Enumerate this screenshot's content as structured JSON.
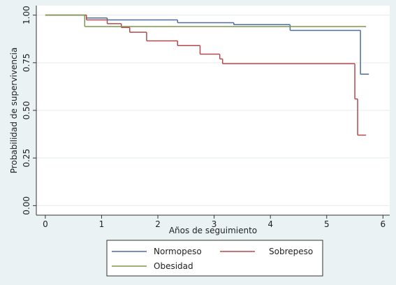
{
  "chart_data": {
    "type": "step",
    "xlabel": "Años de seguimiento",
    "ylabel": "Probabilidad de supervivencia",
    "xlim": [
      -0.16,
      6.12
    ],
    "ylim": [
      -0.05,
      1.05
    ],
    "xticks": [
      0,
      1,
      2,
      3,
      4,
      5,
      6
    ],
    "yticks": [
      {
        "value": 0,
        "label": "0.00"
      },
      {
        "value": 0.25,
        "label": "0.25"
      },
      {
        "value": 0.5,
        "label": "0.50"
      },
      {
        "value": 0.75,
        "label": "0.75"
      },
      {
        "value": 1,
        "label": "1.00"
      }
    ],
    "grid": true,
    "series": [
      {
        "name": "Normopeso",
        "color": "#4a6f9a",
        "x": [
          0,
          0.73,
          1.1,
          2.35,
          3.35,
          4.35,
          5.6,
          5.75
        ],
        "values": [
          1,
          0.985,
          0.975,
          0.96,
          0.95,
          0.92,
          0.69,
          0.69
        ]
      },
      {
        "name": "Sobrepeso",
        "color": "#b5474f",
        "x": [
          0,
          0.73,
          1.1,
          1.35,
          1.5,
          1.8,
          2.35,
          2.75,
          3.1,
          3.15,
          5.5,
          5.55,
          5.7
        ],
        "values": [
          1,
          0.975,
          0.955,
          0.935,
          0.91,
          0.865,
          0.84,
          0.795,
          0.77,
          0.745,
          0.56,
          0.37,
          0.37
        ]
      },
      {
        "name": "Obesidad",
        "color": "#7a9a4a",
        "x": [
          0,
          0.7,
          5.7
        ],
        "values": [
          1,
          0.94,
          0.94
        ]
      }
    ]
  }
}
